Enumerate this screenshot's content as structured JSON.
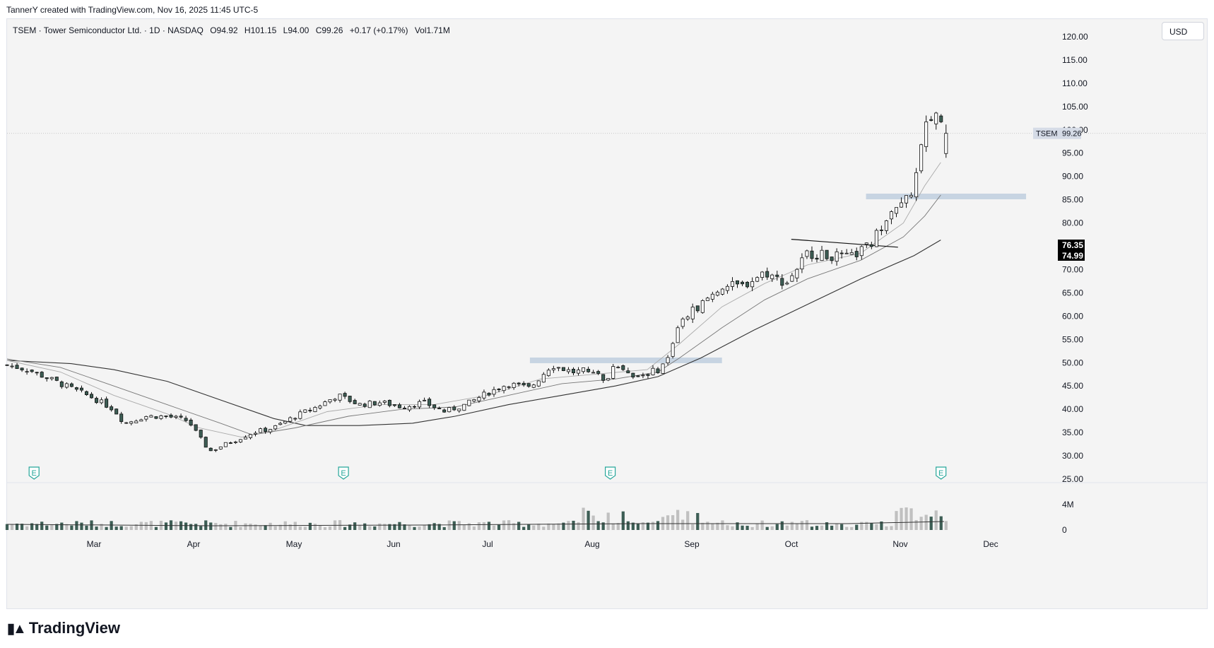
{
  "header": {
    "attribution": "TannerY created with TradingView.com, Nov 16, 2025 11:45 UTC-5"
  },
  "legend": {
    "symbol": "TSEM · Tower Semiconductor Ltd. · 1D · NASDAQ",
    "open": "O94.92",
    "high": "H101.15",
    "low": "L94.00",
    "close": "C99.26",
    "change": "+0.17 (+0.17%)",
    "volume": "Vol1.71M"
  },
  "currency_label": "USD",
  "brand": {
    "name": "TradingView"
  },
  "colors": {
    "up": "#ffffff",
    "down": "#3d5e55",
    "outline": "#111111",
    "zone": "#b8c9dc",
    "price_bg": "#000000",
    "volume_up": "#c0c0c0",
    "volume_down": "#3d5e55"
  },
  "chart_data": {
    "type": "candlestick",
    "title": "TSEM · Tower Semiconductor Ltd. · 1D · NASDAQ",
    "price_axis": {
      "ticks": [
        "25.00",
        "30.00",
        "35.00",
        "40.00",
        "45.00",
        "50.00",
        "55.00",
        "60.00",
        "65.00",
        "70.00",
        "75.00",
        "80.00",
        "85.00",
        "90.00",
        "95.00",
        "100.00",
        "105.00",
        "110.00",
        "115.00",
        "120.00"
      ],
      "ylim": [
        25,
        122
      ]
    },
    "time_axis": {
      "ticks": [
        "Mar",
        "Apr",
        "May",
        "Jun",
        "Jul",
        "Aug",
        "Sep",
        "Oct",
        "Nov",
        "Dec"
      ]
    },
    "volume_axis": {
      "ticks": [
        "4M",
        "0"
      ]
    },
    "last_price": {
      "symbol": "TSEM",
      "value": "99.26"
    },
    "ma_labels": [
      "76.35",
      "74.99"
    ],
    "earnings_markers": [
      "E",
      "E",
      "E",
      "E"
    ],
    "earnings_points": [
      0.02,
      0.31,
      0.56,
      0.87
    ],
    "price_path": [
      [
        0.0,
        49.5
      ],
      [
        0.02,
        48.5
      ],
      [
        0.04,
        46.5
      ],
      [
        0.06,
        44.5
      ],
      [
        0.08,
        42.5
      ],
      [
        0.1,
        40.0
      ],
      [
        0.11,
        37.0
      ],
      [
        0.13,
        38.5
      ],
      [
        0.15,
        38.5
      ],
      [
        0.17,
        37.5
      ],
      [
        0.18,
        34.0
      ],
      [
        0.19,
        31.0
      ],
      [
        0.21,
        33.0
      ],
      [
        0.23,
        35.0
      ],
      [
        0.25,
        36.0
      ],
      [
        0.27,
        38.5
      ],
      [
        0.29,
        40.5
      ],
      [
        0.31,
        43.0
      ],
      [
        0.33,
        41.0
      ],
      [
        0.35,
        41.5
      ],
      [
        0.37,
        40.5
      ],
      [
        0.39,
        41.5
      ],
      [
        0.41,
        39.5
      ],
      [
        0.43,
        41.0
      ],
      [
        0.45,
        43.5
      ],
      [
        0.47,
        45.5
      ],
      [
        0.49,
        44.5
      ],
      [
        0.51,
        49.5
      ],
      [
        0.53,
        48.0
      ],
      [
        0.55,
        48.5
      ],
      [
        0.56,
        45.5
      ],
      [
        0.57,
        50.0
      ],
      [
        0.59,
        47.0
      ],
      [
        0.61,
        48.5
      ],
      [
        0.62,
        51.0
      ],
      [
        0.63,
        59.0
      ],
      [
        0.65,
        62.5
      ],
      [
        0.67,
        66.5
      ],
      [
        0.69,
        66.5
      ],
      [
        0.71,
        69.5
      ],
      [
        0.73,
        67.0
      ],
      [
        0.75,
        73.5
      ],
      [
        0.77,
        73.0
      ],
      [
        0.79,
        72.5
      ],
      [
        0.81,
        75.5
      ],
      [
        0.83,
        84.0
      ],
      [
        0.84,
        83.5
      ],
      [
        0.85,
        88.0
      ],
      [
        0.86,
        100.0
      ],
      [
        0.87,
        104.0
      ],
      [
        0.88,
        99.26
      ]
    ],
    "ma_fast": [
      [
        0.0,
        50.5
      ],
      [
        0.05,
        48.0
      ],
      [
        0.1,
        43.0
      ],
      [
        0.15,
        39.0
      ],
      [
        0.18,
        36.0
      ],
      [
        0.22,
        34.0
      ],
      [
        0.25,
        35.5
      ],
      [
        0.3,
        39.5
      ],
      [
        0.35,
        41.0
      ],
      [
        0.4,
        41.0
      ],
      [
        0.45,
        43.0
      ],
      [
        0.5,
        46.5
      ],
      [
        0.55,
        47.5
      ],
      [
        0.6,
        48.5
      ],
      [
        0.63,
        54.0
      ],
      [
        0.67,
        62.0
      ],
      [
        0.71,
        67.0
      ],
      [
        0.75,
        71.0
      ],
      [
        0.8,
        73.5
      ],
      [
        0.84,
        80.0
      ],
      [
        0.86,
        88.0
      ],
      [
        0.875,
        93.0
      ]
    ],
    "ma_mid": [
      [
        0.0,
        50.8
      ],
      [
        0.05,
        49.0
      ],
      [
        0.1,
        45.0
      ],
      [
        0.15,
        41.0
      ],
      [
        0.2,
        37.0
      ],
      [
        0.23,
        34.5
      ],
      [
        0.27,
        36.0
      ],
      [
        0.32,
        38.5
      ],
      [
        0.37,
        40.0
      ],
      [
        0.42,
        40.5
      ],
      [
        0.47,
        43.0
      ],
      [
        0.52,
        45.5
      ],
      [
        0.57,
        46.5
      ],
      [
        0.61,
        48.0
      ],
      [
        0.63,
        51.0
      ],
      [
        0.67,
        57.5
      ],
      [
        0.71,
        63.5
      ],
      [
        0.75,
        68.0
      ],
      [
        0.8,
        72.0
      ],
      [
        0.84,
        77.0
      ],
      [
        0.86,
        81.5
      ],
      [
        0.875,
        86.0
      ]
    ],
    "ma_slow": [
      [
        0.0,
        50.5
      ],
      [
        0.06,
        49.8
      ],
      [
        0.1,
        48.5
      ],
      [
        0.15,
        46.0
      ],
      [
        0.2,
        42.0
      ],
      [
        0.25,
        38.0
      ],
      [
        0.28,
        36.5
      ],
      [
        0.33,
        36.5
      ],
      [
        0.38,
        37.0
      ],
      [
        0.42,
        38.5
      ],
      [
        0.47,
        41.0
      ],
      [
        0.52,
        43.0
      ],
      [
        0.57,
        45.0
      ],
      [
        0.61,
        47.0
      ],
      [
        0.65,
        51.0
      ],
      [
        0.7,
        57.0
      ],
      [
        0.75,
        62.5
      ],
      [
        0.8,
        68.0
      ],
      [
        0.85,
        73.0
      ],
      [
        0.875,
        76.35
      ]
    ],
    "trendline": [
      [
        0.735,
        76.5
      ],
      [
        0.835,
        74.8
      ]
    ],
    "zones": [
      {
        "from": 0.49,
        "to": 0.67,
        "price": 50.5
      },
      {
        "from": 0.805,
        "to": 0.955,
        "price": 85.7
      }
    ]
  }
}
